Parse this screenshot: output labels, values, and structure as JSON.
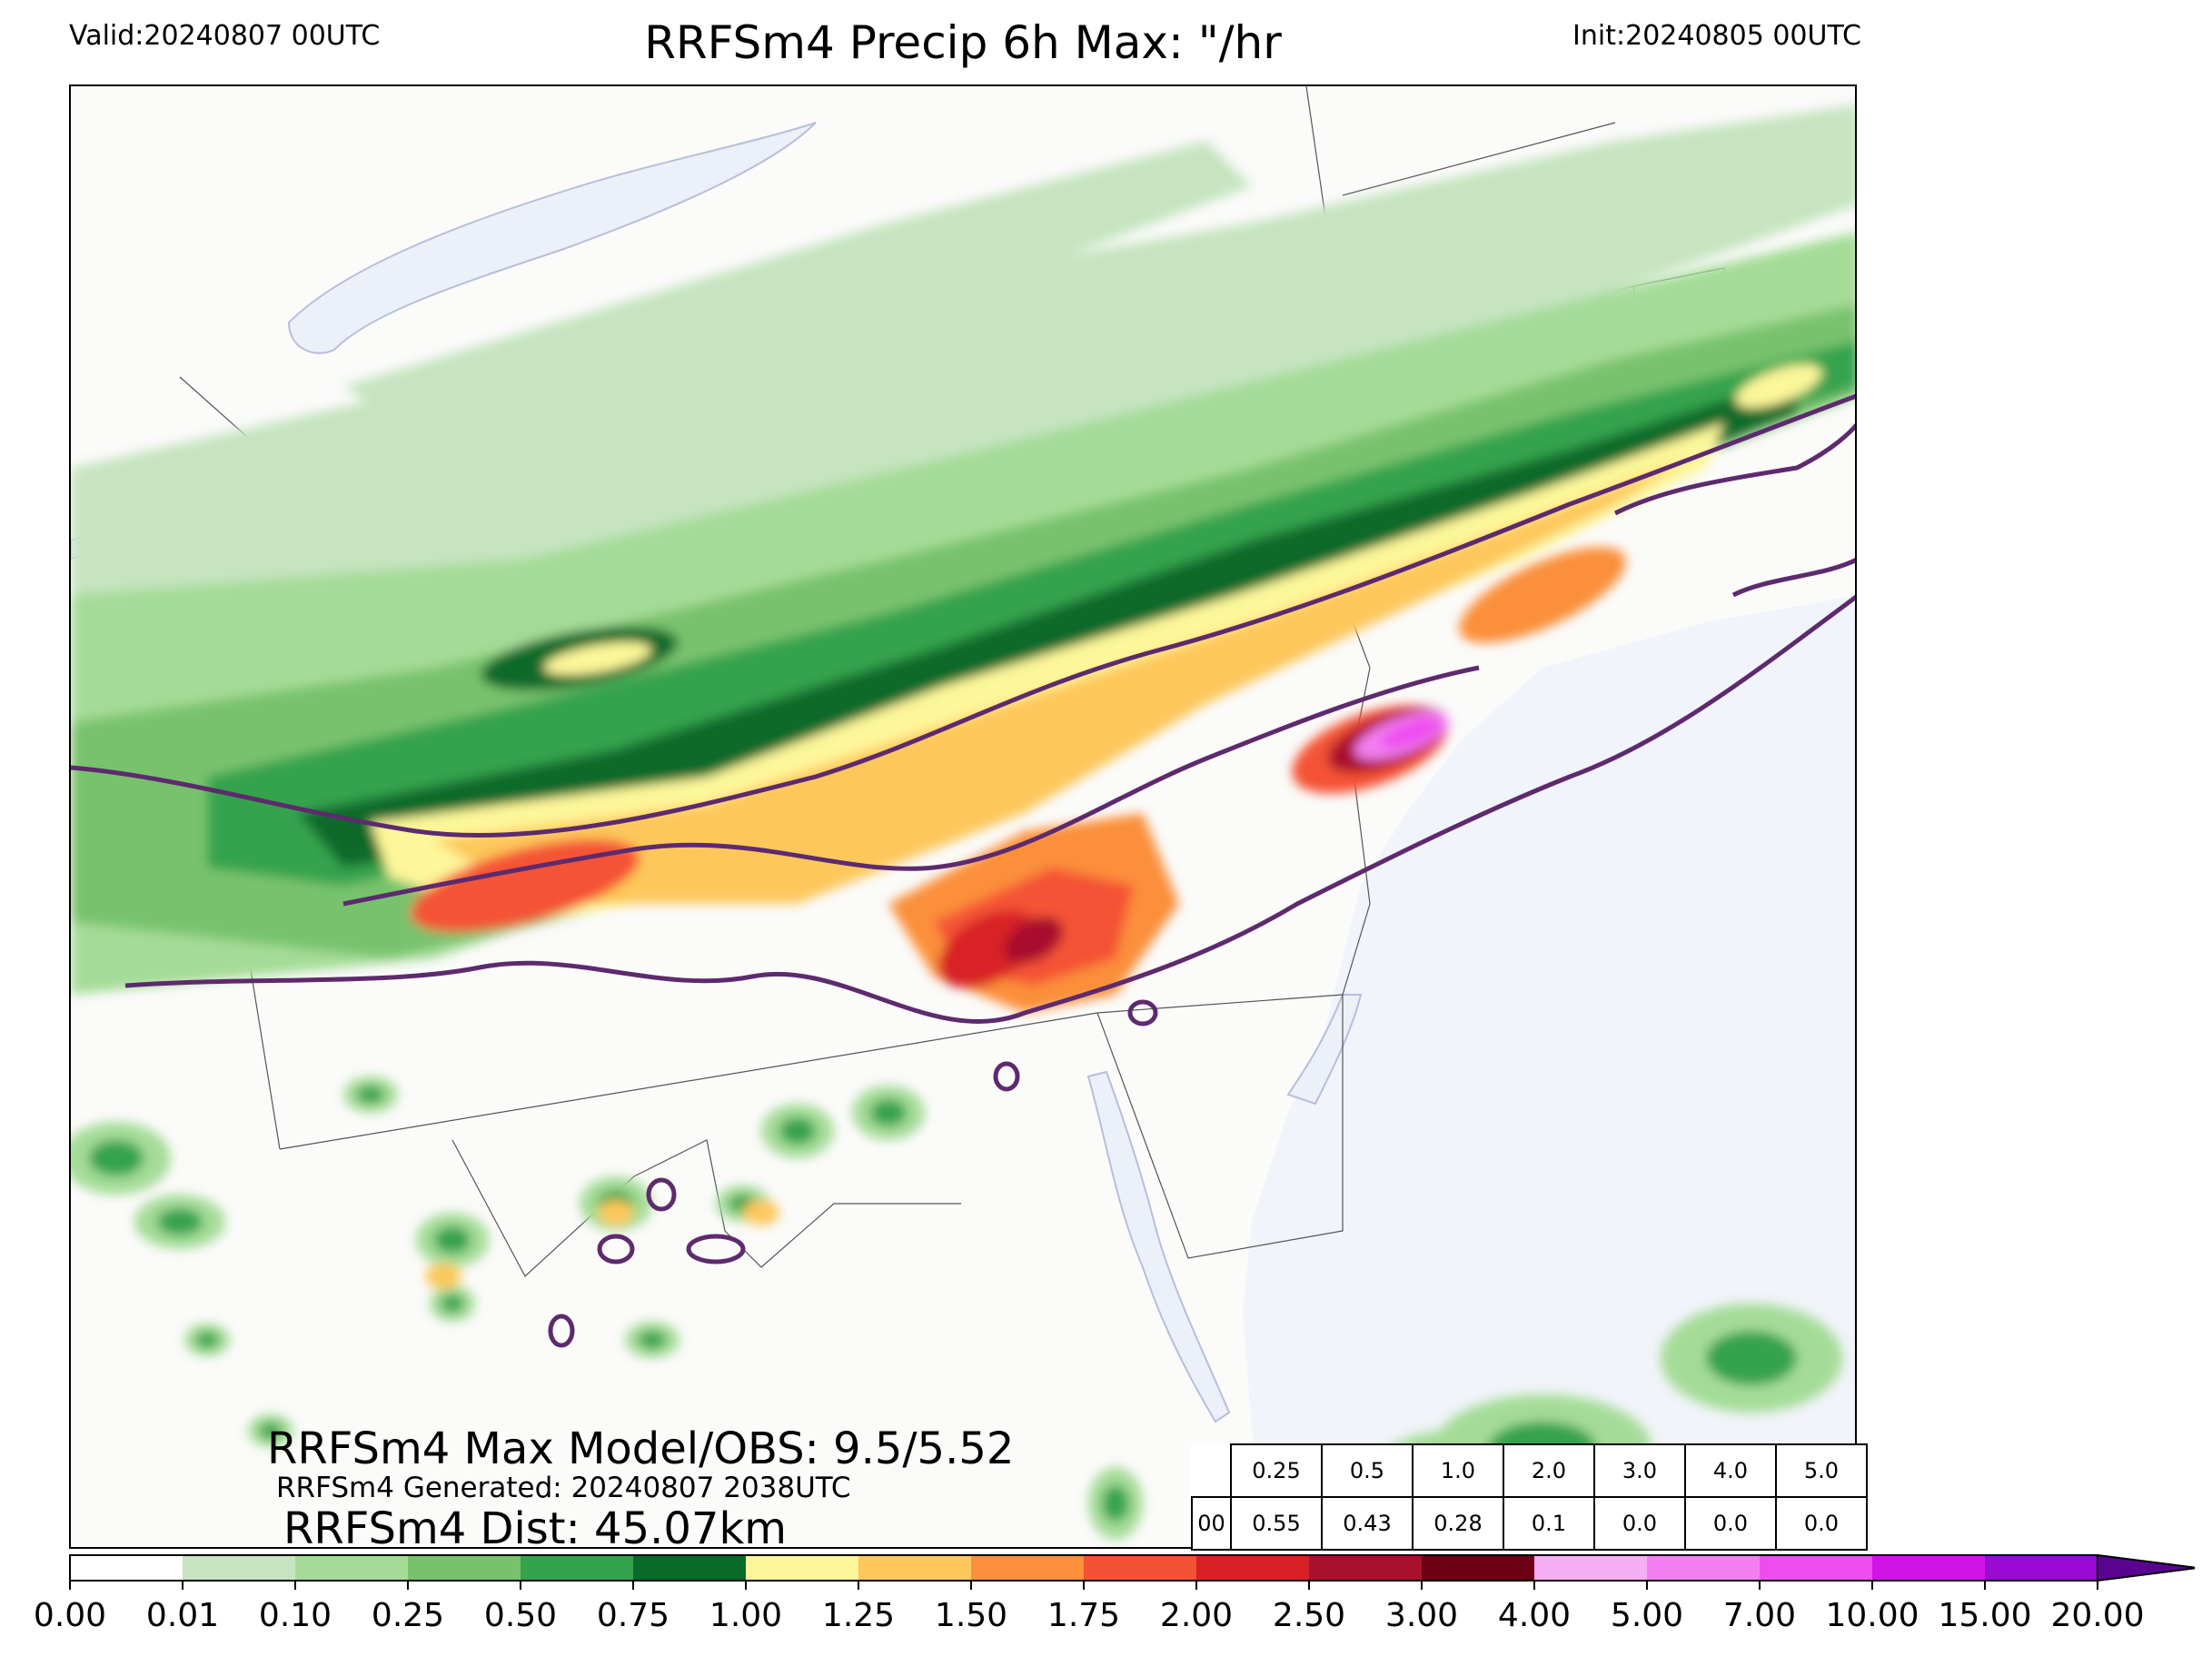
{
  "header": {
    "valid": "Valid:20240807 00UTC",
    "title": "RRFSm4 Precip 6h Max: \"/hr",
    "init": "Init:20240805 00UTC"
  },
  "stats": {
    "max_model_obs": "RRFSm4 Max Model/OBS: 9.5/5.52",
    "generated": "RRFSm4 Generated: 20240807 2038UTC",
    "distance": "RRFSm4 Dist: 45.07km"
  },
  "score_table": {
    "thresholds": [
      "0.25",
      "0.5",
      "1.0",
      "2.0",
      "3.0",
      "4.0",
      "5.0"
    ],
    "row_label": "00",
    "scores": [
      "0.55",
      "0.43",
      "0.28",
      "0.1",
      "0.0",
      "0.0",
      "0.0"
    ]
  },
  "colorbar": {
    "ticks": [
      "0.00",
      "0.01",
      "0.10",
      "0.25",
      "0.50",
      "0.75",
      "1.00",
      "1.25",
      "1.50",
      "1.75",
      "2.00",
      "2.50",
      "3.00",
      "4.00",
      "5.00",
      "7.00",
      "10.00",
      "15.00",
      "20.00"
    ],
    "colors": [
      "#ffffff",
      "#c6e4c0",
      "#a4dc97",
      "#78c26d",
      "#34a34e",
      "#086b2a",
      "#fdf69a",
      "#fdc75c",
      "#fb8f3b",
      "#f45234",
      "#d82027",
      "#a9102e",
      "#6d0013",
      "#f6aef3",
      "#f27ff0",
      "#ee4bf0",
      "#d014e8",
      "#9a0ad3"
    ],
    "extend_color": "#5b0391"
  },
  "map": {
    "land_color": "#fbfbfa",
    "water_color": "#f1f4fa",
    "lake_color": "#ecf0f8",
    "contour_color": "#5e2a6e"
  }
}
